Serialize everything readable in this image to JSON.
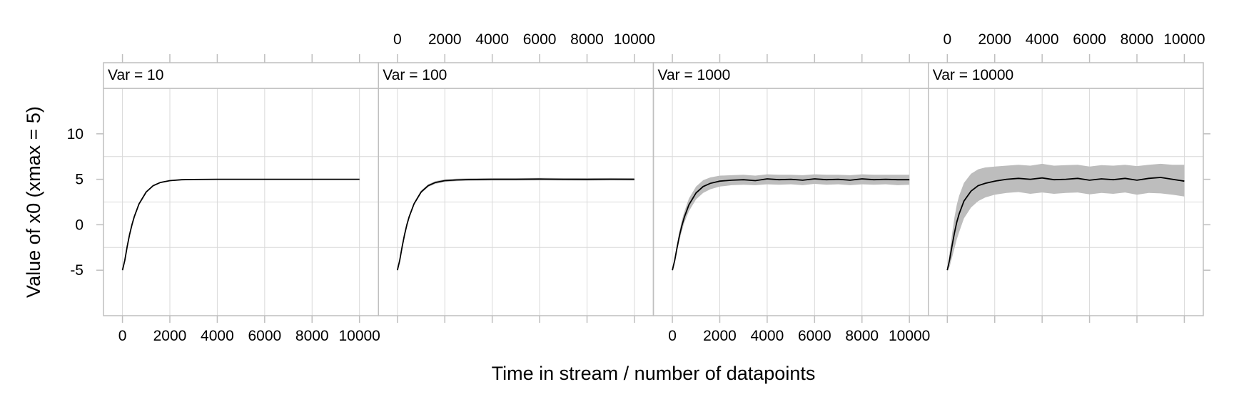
{
  "chart_data": {
    "type": "line",
    "xlabel": "Time in stream / number of datapoints",
    "ylabel": "Value of x0 (xmax = 5)",
    "xlim": [
      -800,
      10800
    ],
    "ylim": [
      -10,
      15
    ],
    "x_ticks": [
      0,
      2000,
      4000,
      6000,
      8000,
      10000
    ],
    "y_ticks": [
      -5,
      0,
      5,
      10
    ],
    "grid": true,
    "band": "grey shaded interval around the mean curve",
    "colors": {
      "line": "#000000",
      "band": "#bdbdbd",
      "grid": "#d9d9d9",
      "frame": "#bfbfbf"
    },
    "panels": [
      {
        "label": "Var = 10",
        "x_tick_labels_bottom": true,
        "x_tick_labels_top": false,
        "series": [
          {
            "x": [
              0,
              100,
              200,
              300,
              400,
              500,
              700,
              1000,
              1300,
              1600,
              2000,
              2500,
              3000,
              4000,
              5000,
              6000,
              7000,
              8000,
              9000,
              10000
            ],
            "y": [
              -5,
              -3.9,
              -2.4,
              -1.1,
              0.0,
              0.9,
              2.3,
              3.6,
              4.3,
              4.65,
              4.85,
              4.95,
              4.98,
              5.0,
              5.0,
              5.0,
              5.0,
              5.0,
              5.0,
              5.0
            ],
            "lower": [
              -5,
              -3.95,
              -2.45,
              -1.15,
              -0.05,
              0.85,
              2.25,
              3.55,
              4.25,
              4.6,
              4.8,
              4.9,
              4.93,
              4.95,
              4.95,
              4.95,
              4.95,
              4.95,
              4.95,
              4.95
            ],
            "upper": [
              -5,
              -3.85,
              -2.35,
              -1.05,
              0.05,
              0.95,
              2.35,
              3.65,
              4.35,
              4.7,
              4.9,
              5.0,
              5.03,
              5.05,
              5.05,
              5.05,
              5.05,
              5.05,
              5.05,
              5.05
            ]
          }
        ]
      },
      {
        "label": "Var = 100",
        "x_tick_labels_bottom": false,
        "x_tick_labels_top": true,
        "series": [
          {
            "x": [
              0,
              100,
              200,
              300,
              400,
              500,
              700,
              1000,
              1300,
              1600,
              2000,
              2500,
              3000,
              4000,
              5000,
              6000,
              7000,
              8000,
              9000,
              10000
            ],
            "y": [
              -5,
              -3.9,
              -2.4,
              -1.1,
              0.0,
              0.9,
              2.3,
              3.6,
              4.3,
              4.65,
              4.85,
              4.93,
              4.97,
              5.0,
              5.0,
              5.02,
              5.0,
              4.99,
              5.01,
              5.0
            ],
            "lower": [
              -5,
              -4.0,
              -2.5,
              -1.25,
              -0.15,
              0.75,
              2.15,
              3.45,
              4.15,
              4.5,
              4.7,
              4.8,
              4.84,
              4.87,
              4.87,
              4.88,
              4.87,
              4.86,
              4.88,
              4.87
            ],
            "upper": [
              -5,
              -3.8,
              -2.3,
              -0.95,
              0.15,
              1.05,
              2.45,
              3.75,
              4.45,
              4.8,
              5.0,
              5.06,
              5.1,
              5.13,
              5.13,
              5.16,
              5.13,
              5.12,
              5.14,
              5.13
            ]
          }
        ]
      },
      {
        "label": "Var = 1000",
        "x_tick_labels_bottom": true,
        "x_tick_labels_top": false,
        "series": [
          {
            "x": [
              0,
              100,
              200,
              300,
              400,
              500,
              700,
              1000,
              1300,
              1600,
              2000,
              2500,
              3000,
              3500,
              4000,
              4500,
              5000,
              5500,
              6000,
              6500,
              7000,
              7500,
              8000,
              8500,
              9000,
              9500,
              10000
            ],
            "y": [
              -5,
              -3.9,
              -2.5,
              -1.2,
              -0.1,
              0.8,
              2.2,
              3.5,
              4.2,
              4.55,
              4.8,
              4.9,
              4.95,
              4.85,
              5.05,
              4.95,
              5.0,
              4.9,
              5.05,
              4.95,
              5.0,
              4.9,
              5.05,
              4.95,
              5.0,
              4.95,
              4.95
            ],
            "lower": [
              -5,
              -4.2,
              -2.9,
              -1.7,
              -0.7,
              0.2,
              1.5,
              2.8,
              3.5,
              3.9,
              4.2,
              4.35,
              4.4,
              4.35,
              4.45,
              4.4,
              4.45,
              4.35,
              4.5,
              4.4,
              4.45,
              4.35,
              4.45,
              4.4,
              4.45,
              4.35,
              4.4
            ],
            "upper": [
              -5,
              -3.6,
              -2.1,
              -0.7,
              0.5,
              1.4,
              2.9,
              4.2,
              4.9,
              5.2,
              5.4,
              5.45,
              5.5,
              5.4,
              5.55,
              5.5,
              5.5,
              5.45,
              5.55,
              5.5,
              5.5,
              5.45,
              5.55,
              5.5,
              5.5,
              5.5,
              5.5
            ]
          }
        ]
      },
      {
        "label": "Var = 10000",
        "x_tick_labels_bottom": false,
        "x_tick_labels_top": true,
        "series": [
          {
            "x": [
              0,
              100,
              200,
              300,
              400,
              500,
              700,
              1000,
              1300,
              1600,
              2000,
              2500,
              3000,
              3500,
              4000,
              4500,
              5000,
              5500,
              6000,
              6500,
              7000,
              7500,
              8000,
              8500,
              9000,
              9500,
              10000
            ],
            "y": [
              -5,
              -3.8,
              -2.3,
              -0.9,
              0.3,
              1.2,
              2.6,
              3.7,
              4.3,
              4.55,
              4.8,
              5.0,
              5.1,
              5.0,
              5.15,
              4.95,
              5.0,
              5.1,
              4.9,
              5.05,
              4.95,
              5.1,
              4.9,
              5.1,
              5.2,
              5.0,
              4.8
            ],
            "lower": [
              -5,
              -4.6,
              -3.6,
              -2.6,
              -1.6,
              -0.8,
              0.7,
              1.9,
              2.6,
              3.0,
              3.3,
              3.5,
              3.6,
              3.4,
              3.55,
              3.4,
              3.5,
              3.55,
              3.35,
              3.5,
              3.4,
              3.55,
              3.3,
              3.5,
              3.45,
              3.3,
              3.1
            ],
            "upper": [
              -5,
              -3.0,
              -1.0,
              0.8,
              2.2,
              3.2,
              4.6,
              5.6,
              6.1,
              6.3,
              6.4,
              6.5,
              6.6,
              6.5,
              6.7,
              6.5,
              6.55,
              6.6,
              6.4,
              6.55,
              6.5,
              6.6,
              6.45,
              6.6,
              6.7,
              6.6,
              6.6
            ]
          }
        ]
      }
    ]
  }
}
